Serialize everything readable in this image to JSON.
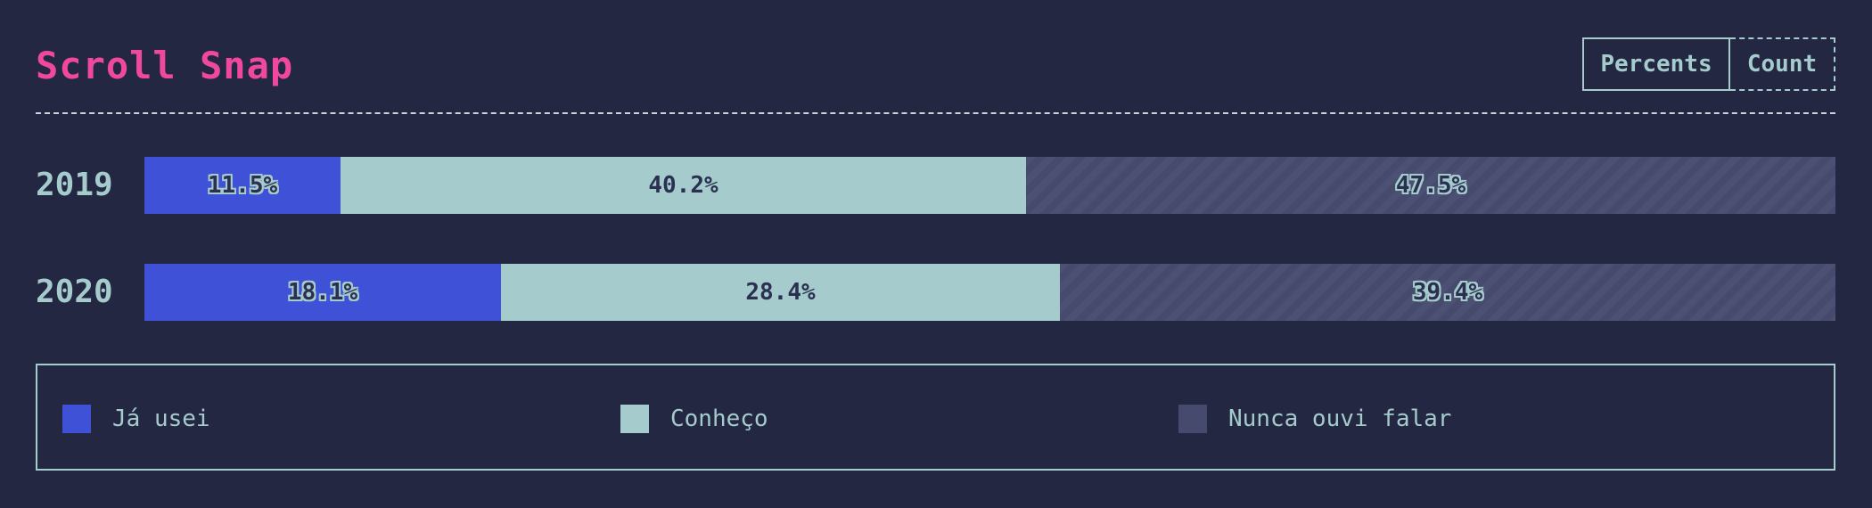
{
  "header": {
    "title": "Scroll Snap",
    "toggle": {
      "percents_label": "Percents",
      "count_label": "Count",
      "active": "Percents"
    }
  },
  "chart_data": {
    "type": "bar",
    "orientation": "horizontal",
    "stacked": true,
    "categories": [
      "2019",
      "2020"
    ],
    "series": [
      {
        "name": "Já usei",
        "color": "#3f51d6",
        "values": [
          11.5,
          18.1
        ]
      },
      {
        "name": "Conheço",
        "color": "#a5cbcd",
        "values": [
          40.2,
          28.4
        ]
      },
      {
        "name": "Nunca ouvi falar",
        "color": "#464b6e",
        "values": [
          47.5,
          39.4
        ]
      }
    ],
    "value_labels": [
      [
        "11.5%",
        "40.2%",
        "47.5%"
      ],
      [
        "18.1%",
        "28.4%",
        "39.4%"
      ]
    ],
    "legend_placement": "bottom"
  },
  "legend": {
    "items": [
      {
        "label": "Já usei",
        "color": "#3f51d6"
      },
      {
        "label": "Conheço",
        "color": "#a5cbcd"
      },
      {
        "label": "Nunca ouvi falar",
        "color": "#464b6e"
      }
    ]
  }
}
